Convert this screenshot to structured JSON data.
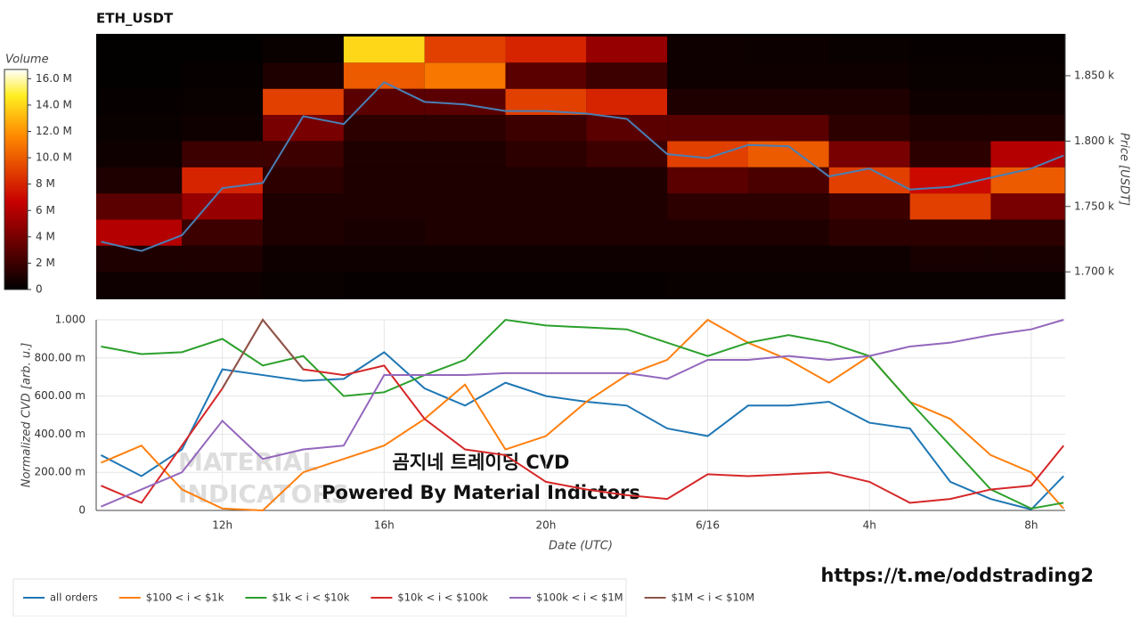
{
  "chart_data": [
    {
      "type": "heatmap",
      "title": "ETH_USDT",
      "colorbar_title": "Volume",
      "ylabel": "Price [USDT]",
      "xlim": [
        8.88,
        32.84
      ],
      "ylim": [
        1679,
        1882
      ],
      "yticks": [
        {
          "value": 1700,
          "label": "1.700 k"
        },
        {
          "value": 1750,
          "label": "1.750 k"
        },
        {
          "value": 1800,
          "label": "1.800 k"
        },
        {
          "value": 1850,
          "label": "1.850 k"
        }
      ],
      "zlim": [
        0,
        16.7
      ],
      "zticks": [
        0,
        {
          "value": 2,
          "label": "2 M"
        },
        {
          "value": 4,
          "label": "4 M"
        },
        {
          "value": 6,
          "label": "6 M"
        },
        {
          "value": 8,
          "label": "8 M"
        },
        {
          "value": 10,
          "label": "10.0 M"
        },
        {
          "value": 12,
          "label": "12.0 M"
        },
        {
          "value": 14,
          "label": "14.0 M"
        },
        {
          "value": 16,
          "label": "16.0 M"
        }
      ],
      "colorscale": [
        [
          0,
          "#000000"
        ],
        [
          0.4,
          "#c80000"
        ],
        [
          0.7,
          "#ff8a00"
        ],
        [
          0.88,
          "#ffee20"
        ],
        [
          1,
          "#ffffff"
        ]
      ],
      "x_edges": [
        8.88,
        11,
        13,
        15,
        17,
        19,
        21,
        23,
        25,
        27,
        29,
        31,
        32.84
      ],
      "y_edges": [
        1680,
        1700,
        1720,
        1740,
        1760,
        1780,
        1800,
        1820,
        1840,
        1860,
        1880
      ],
      "z": [
        [
          0.5,
          1,
          6,
          3,
          1,
          0.5,
          0.3,
          0.2,
          0.1,
          0.1
        ],
        [
          0.5,
          1,
          2,
          5,
          8,
          2,
          0.5,
          0.3,
          0.2,
          0.1
        ],
        [
          0.3,
          0.5,
          1,
          1,
          1.5,
          2,
          4,
          9,
          1,
          0.3
        ],
        [
          0.2,
          0.5,
          0.8,
          1,
          1,
          1,
          1.5,
          3,
          10,
          14
        ],
        [
          0.2,
          0.5,
          1,
          1,
          1,
          1,
          1.5,
          3,
          11,
          9
        ],
        [
          0.2,
          0.5,
          1,
          1,
          1,
          1.5,
          2,
          9,
          3,
          8
        ],
        [
          0.2,
          0.5,
          1,
          1,
          1,
          2,
          3,
          8,
          2,
          5
        ],
        [
          0.3,
          0.5,
          1,
          1.5,
          3,
          9,
          3,
          1,
          0.5,
          0.5
        ],
        [
          0.3,
          0.5,
          1,
          1.5,
          2.5,
          10,
          3,
          1,
          0.5,
          0.4
        ],
        [
          0.3,
          0.5,
          1.5,
          2,
          9,
          4,
          1.5,
          1,
          0.5,
          0.3
        ],
        [
          0.3,
          0.8,
          1.5,
          9,
          7,
          1.5,
          1,
          0.5,
          0.3,
          0.2
        ],
        [
          0.3,
          0.8,
          1.5,
          4,
          10,
          6,
          1,
          0.5,
          0.3,
          0.2
        ]
      ],
      "line": {
        "color": "#4a7fb5",
        "x": [
          9,
          10,
          11,
          12,
          13,
          14,
          15,
          16,
          17,
          18,
          19,
          20,
          21,
          22,
          23,
          24,
          25,
          26,
          27,
          28,
          29,
          30,
          31,
          32,
          32.8
        ],
        "values": [
          1723,
          1716,
          1728,
          1764,
          1768,
          1819,
          1813,
          1845,
          1830,
          1828,
          1823,
          1823,
          1821,
          1817,
          1790,
          1787,
          1797,
          1796,
          1773,
          1779,
          1763,
          1765,
          1772,
          1779,
          1789
        ]
      }
    },
    {
      "type": "line",
      "xlabel": "Date (UTC)",
      "ylabel": "Normalized CVD [arb. u.]",
      "grid": true,
      "annotations": [
        "곰지네 트레이딩 CVD",
        "Powered By Material Indictors"
      ],
      "watermark": [
        "MATERIAL",
        "INDICATORS"
      ],
      "link": "https://t.me/oddstrading2",
      "xlim": [
        8.88,
        32.84
      ],
      "xticks": [
        {
          "value": 12,
          "label": "12h"
        },
        {
          "value": 16,
          "label": "16h"
        },
        {
          "value": 20,
          "label": "20h"
        },
        {
          "value": 24,
          "label": "6/16"
        },
        {
          "value": 28,
          "label": "4h"
        },
        {
          "value": 32,
          "label": "8h"
        }
      ],
      "ylim": [
        0,
        1
      ],
      "yticks": [
        0,
        {
          "value": 0.2,
          "label": "200.00 m"
        },
        {
          "value": 0.4,
          "label": "400.00 m"
        },
        {
          "value": 0.6,
          "label": "600.00 m"
        },
        {
          "value": 0.8,
          "label": "800.00 m"
        },
        {
          "value": 1,
          "label": "1.000"
        }
      ],
      "x": [
        9,
        10,
        11,
        12,
        13,
        14,
        15,
        16,
        17,
        18,
        19,
        20,
        21,
        22,
        23,
        24,
        25,
        26,
        27,
        28,
        29,
        30,
        31,
        32,
        32.8
      ],
      "series": [
        {
          "name": "all orders",
          "color": "#1f77b4",
          "values": [
            0.29,
            0.18,
            0.32,
            0.74,
            0.71,
            0.68,
            0.69,
            0.83,
            0.64,
            0.55,
            0.67,
            0.6,
            0.57,
            0.55,
            0.43,
            0.39,
            0.55,
            0.55,
            0.57,
            0.46,
            0.43,
            0.15,
            0.06,
            0.005,
            0.18
          ]
        },
        {
          "name": "$100 < i < $1k",
          "color": "#ff7f0e",
          "values": [
            0.25,
            0.34,
            0.11,
            0.01,
            0.0,
            0.2,
            0.27,
            0.34,
            0.48,
            0.66,
            0.32,
            0.39,
            0.57,
            0.71,
            0.79,
            1.0,
            0.88,
            0.79,
            0.67,
            0.81,
            0.57,
            0.48,
            0.29,
            0.2,
            0.01
          ]
        },
        {
          "name": "$1k < i < $10k",
          "color": "#2ca02c",
          "values": [
            0.86,
            0.82,
            0.83,
            0.9,
            0.76,
            0.81,
            0.6,
            0.62,
            0.71,
            0.79,
            1.0,
            0.97,
            0.96,
            0.95,
            0.88,
            0.81,
            0.88,
            0.92,
            0.88,
            0.81,
            0.57,
            0.34,
            0.11,
            0.01,
            0.04
          ]
        },
        {
          "name": "$10k < i < $100k",
          "color": "#d62728",
          "values": [
            0.13,
            0.04,
            0.34,
            0.64,
            1.0,
            0.74,
            0.71,
            0.76,
            0.48,
            0.32,
            0.29,
            0.15,
            0.11,
            0.08,
            0.06,
            0.19,
            0.18,
            0.19,
            0.2,
            0.15,
            0.04,
            0.06,
            0.11,
            0.13,
            0.34
          ]
        },
        {
          "name": "$100k < i < $1M",
          "color": "#9467bd",
          "values": [
            0.02,
            0.11,
            0.2,
            0.47,
            0.27,
            0.32,
            0.34,
            0.71,
            0.71,
            0.71,
            0.72,
            0.72,
            0.72,
            0.72,
            0.69,
            0.79,
            0.79,
            0.81,
            0.79,
            0.81,
            0.86,
            0.88,
            0.92,
            0.95,
            1.0
          ]
        },
        {
          "name": "$1M < i < $10M",
          "color": "#8c564b",
          "values": [
            null,
            null,
            null,
            0.64,
            1.0,
            0.74,
            null,
            null,
            null,
            null,
            null,
            null,
            null,
            null,
            null,
            null,
            null,
            null,
            null,
            null,
            null,
            null,
            null,
            null,
            null
          ]
        }
      ]
    }
  ]
}
